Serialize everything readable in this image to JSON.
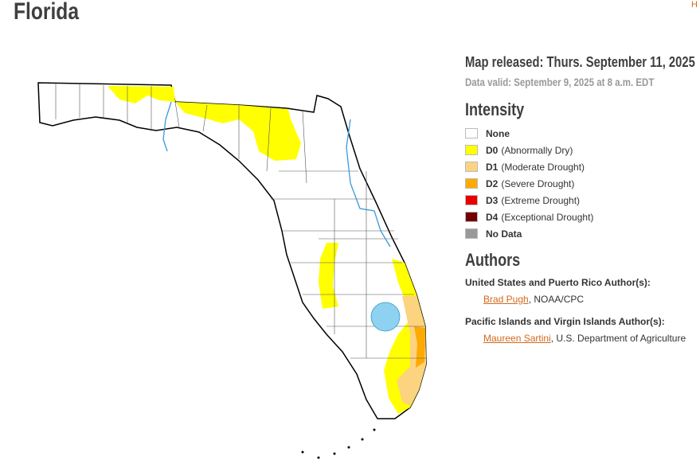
{
  "header": {
    "title": "Florida",
    "corner_link": "H"
  },
  "release": {
    "released": "Map released: Thurs. September 11, 2025",
    "valid": "Data valid: September 9, 2025 at 8 a.m. EDT"
  },
  "legend": {
    "title": "Intensity",
    "items": [
      {
        "code": "None",
        "color": "#ffffff"
      },
      {
        "code": "D0",
        "desc": "(Abnormally Dry)",
        "color": "#ffff00"
      },
      {
        "code": "D1",
        "desc": "(Moderate Drought)",
        "color": "#fcd37f"
      },
      {
        "code": "D2",
        "desc": "(Severe Drought)",
        "color": "#ffaa00"
      },
      {
        "code": "D3",
        "desc": "(Extreme Drought)",
        "color": "#e60000"
      },
      {
        "code": "D4",
        "desc": "(Exceptional Drought)",
        "color": "#730000"
      },
      {
        "code": "No Data",
        "color": "#999999"
      }
    ]
  },
  "authors": {
    "title": "Authors",
    "groups": [
      {
        "heading": "United States and Puerto Rico Author(s):",
        "name": "Brad Pugh",
        "affiliation": ", NOAA/CPC"
      },
      {
        "heading": "Pacific Islands and Virgin Islands Author(s):",
        "name": "Maureen Sartini",
        "affiliation": ", U.S. Department of Agriculture"
      }
    ]
  }
}
